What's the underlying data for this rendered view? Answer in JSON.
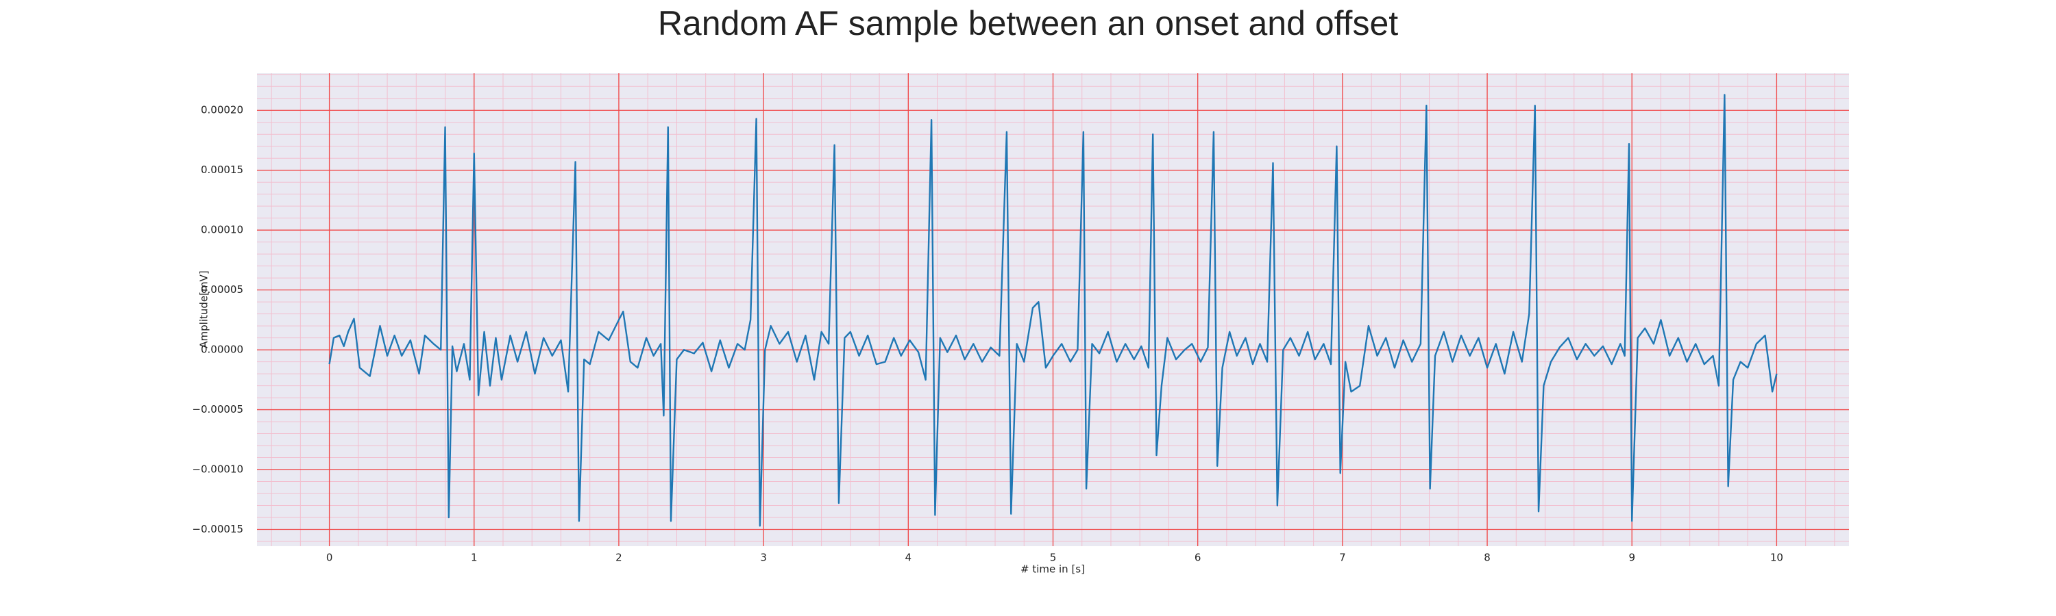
{
  "chart_data": {
    "type": "line",
    "title": "Random AF sample between an onset and offset",
    "xlabel": "# time in [s]",
    "ylabel": "Amplitude[mV]",
    "color": "#1f77b4",
    "background": "#eae9f2",
    "grid": true,
    "grid_color": "#f04848",
    "minor_grid": true,
    "minor_grid_color": "#f2bfcf",
    "xlim": [
      -0.5,
      10.5
    ],
    "ylim": [
      -0.000164,
      0.000231
    ],
    "xticks": [
      0,
      1,
      2,
      3,
      4,
      5,
      6,
      7,
      8,
      9,
      10
    ],
    "yticks": [
      {
        "value": -0.00015,
        "label": "−0.00015"
      },
      {
        "value": -0.0001,
        "label": "−0.00010"
      },
      {
        "value": -5e-05,
        "label": "−0.00005"
      },
      {
        "value": 0,
        "label": "0.00000"
      },
      {
        "value": 5e-05,
        "label": "0.00005"
      },
      {
        "value": 0.0001,
        "label": "0.00010"
      },
      {
        "value": 0.00015,
        "label": "0.00015"
      },
      {
        "value": 0.0002,
        "label": "0.00020"
      }
    ],
    "x": [
      0,
      0.03,
      0.07,
      0.1,
      0.13,
      0.17,
      0.21,
      0.28,
      0.35,
      0.4,
      0.45,
      0.5,
      0.56,
      0.62,
      0.66,
      0.72,
      0.77,
      0.8,
      0.825,
      0.85,
      0.88,
      0.93,
      0.97,
      1.0,
      1.03,
      1.07,
      1.11,
      1.15,
      1.19,
      1.25,
      1.3,
      1.36,
      1.42,
      1.48,
      1.54,
      1.6,
      1.65,
      1.7,
      1.725,
      1.76,
      1.8,
      1.86,
      1.93,
      2.0,
      2.03,
      2.08,
      2.13,
      2.19,
      2.24,
      2.29,
      2.31,
      2.34,
      2.36,
      2.4,
      2.45,
      2.52,
      2.58,
      2.64,
      2.7,
      2.76,
      2.82,
      2.87,
      2.91,
      2.95,
      2.975,
      3.01,
      3.05,
      3.11,
      3.17,
      3.23,
      3.29,
      3.35,
      3.4,
      3.45,
      3.49,
      3.52,
      3.56,
      3.6,
      3.66,
      3.72,
      3.78,
      3.84,
      3.9,
      3.95,
      4.01,
      4.07,
      4.12,
      4.16,
      4.185,
      4.22,
      4.27,
      4.33,
      4.39,
      4.45,
      4.51,
      4.57,
      4.63,
      4.68,
      4.71,
      4.75,
      4.8,
      4.86,
      4.9,
      4.95,
      5.0,
      5.06,
      5.12,
      5.17,
      5.21,
      5.23,
      5.27,
      5.32,
      5.38,
      5.44,
      5.5,
      5.56,
      5.61,
      5.66,
      5.69,
      5.715,
      5.75,
      5.79,
      5.85,
      5.91,
      5.96,
      6.02,
      6.07,
      6.11,
      6.135,
      6.17,
      6.22,
      6.27,
      6.33,
      6.38,
      6.43,
      6.48,
      6.52,
      6.55,
      6.59,
      6.64,
      6.7,
      6.76,
      6.81,
      6.87,
      6.92,
      6.96,
      6.985,
      7.02,
      7.06,
      7.12,
      7.18,
      7.24,
      7.3,
      7.36,
      7.42,
      7.48,
      7.54,
      7.58,
      7.605,
      7.64,
      7.7,
      7.76,
      7.82,
      7.88,
      7.94,
      8.0,
      8.06,
      8.12,
      8.18,
      8.24,
      8.29,
      8.33,
      8.355,
      8.39,
      8.44,
      8.5,
      8.56,
      8.62,
      8.68,
      8.74,
      8.8,
      8.86,
      8.92,
      8.95,
      8.98,
      9.0,
      9.04,
      9.09,
      9.15,
      9.2,
      9.26,
      9.32,
      9.38,
      9.44,
      9.5,
      9.56,
      9.6,
      9.64,
      9.665,
      9.7,
      9.75,
      9.8,
      9.86,
      9.92,
      9.97,
      10.0
    ],
    "values": [
      -1.2e-05,
      1e-05,
      1.2e-05,
      3e-06,
      1.5e-05,
      2.6e-05,
      -1.5e-05,
      -2.2e-05,
      2e-05,
      -5e-06,
      1.2e-05,
      -5e-06,
      8e-06,
      -2e-05,
      1.2e-05,
      5e-06,
      0,
      0.000186,
      -0.00014,
      3e-06,
      -1.8e-05,
      5e-06,
      -2.5e-05,
      0.000164,
      -3.8e-05,
      1.5e-05,
      -3e-05,
      1e-05,
      -2.5e-05,
      1.2e-05,
      -1e-05,
      1.5e-05,
      -2e-05,
      1e-05,
      -5e-06,
      8e-06,
      -3.5e-05,
      0.000157,
      -0.000143,
      -8e-06,
      -1.2e-05,
      1.5e-05,
      8e-06,
      2.5e-05,
      3.2e-05,
      -1e-05,
      -1.5e-05,
      1e-05,
      -5e-06,
      5e-06,
      -5.5e-05,
      0.000186,
      -0.000143,
      -8e-06,
      0,
      -3e-06,
      6e-06,
      -1.8e-05,
      8e-06,
      -1.5e-05,
      5e-06,
      0,
      2.5e-05,
      0.000193,
      -0.000147,
      0,
      2e-05,
      5e-06,
      1.5e-05,
      -1e-05,
      1.2e-05,
      -2.5e-05,
      1.5e-05,
      5e-06,
      0.000171,
      -0.000128,
      1e-05,
      1.5e-05,
      -5e-06,
      1.2e-05,
      -1.2e-05,
      -1e-05,
      1e-05,
      -5e-06,
      8e-06,
      -2e-06,
      -2.5e-05,
      0.000192,
      -0.000138,
      1e-05,
      -2e-06,
      1.2e-05,
      -8e-06,
      5e-06,
      -1e-05,
      2e-06,
      -5e-06,
      0.000182,
      -0.000137,
      5e-06,
      -1e-05,
      3.5e-05,
      4e-05,
      -1.5e-05,
      -5e-06,
      5e-06,
      -1e-05,
      0,
      0.000182,
      -0.000116,
      5e-06,
      -3e-06,
      1.5e-05,
      -1e-05,
      5e-06,
      -8e-06,
      3e-06,
      -1.5e-05,
      0.00018,
      -8.8e-05,
      -3e-05,
      1e-05,
      -8e-06,
      0,
      5e-06,
      -1e-05,
      2e-06,
      0.000182,
      -9.7e-05,
      -1.5e-05,
      1.5e-05,
      -5e-06,
      1e-05,
      -1.2e-05,
      5e-06,
      -1e-05,
      0.000156,
      -0.00013,
      0,
      1e-05,
      -5e-06,
      1.5e-05,
      -8e-06,
      5e-06,
      -1.2e-05,
      0.00017,
      -0.000103,
      -1e-05,
      -3.5e-05,
      -3e-05,
      2e-05,
      -5e-06,
      1e-05,
      -1.5e-05,
      8e-06,
      -1e-05,
      5e-06,
      0.000204,
      -0.000116,
      -5e-06,
      1.5e-05,
      -1e-05,
      1.2e-05,
      -5e-06,
      1e-05,
      -1.5e-05,
      5e-06,
      -2e-05,
      1.5e-05,
      -1e-05,
      3e-05,
      0.000204,
      -0.000135,
      -3e-05,
      -1e-05,
      2e-06,
      1e-05,
      -8e-06,
      5e-06,
      -5e-06,
      3e-06,
      -1.2e-05,
      5e-06,
      -5e-06,
      0.000172,
      -0.000143,
      1e-05,
      1.8e-05,
      5e-06,
      2.5e-05,
      -5e-06,
      1e-05,
      -1e-05,
      5e-06,
      -1.2e-05,
      -5e-06,
      -3e-05,
      0.000213,
      -0.000114,
      -2.5e-05,
      -1e-05,
      -1.5e-05,
      5e-06,
      1.2e-05,
      -3.5e-05,
      -2e-05
    ]
  }
}
